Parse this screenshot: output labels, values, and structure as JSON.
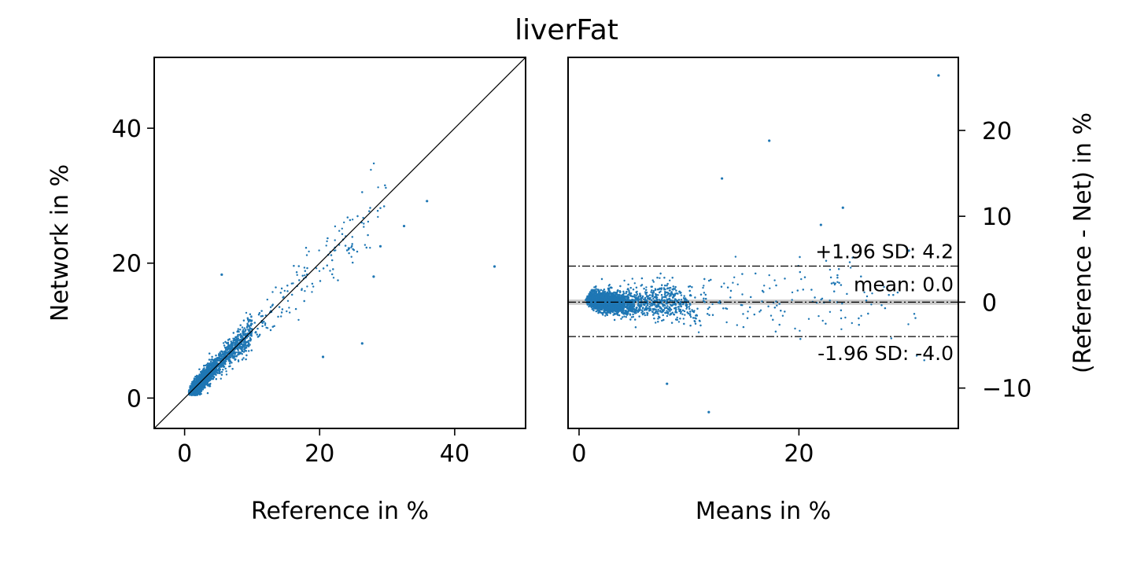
{
  "title": "liverFat",
  "colors": {
    "points": "#1f77b4",
    "frame": "#000000",
    "mean_band": "#bfbfbf"
  },
  "chart_data": [
    {
      "type": "scatter",
      "panel": "correlation",
      "xlabel": "Reference in %",
      "ylabel": "Network in %",
      "xlim": [
        -4.5,
        50.5
      ],
      "ylim": [
        -4.5,
        50.5
      ],
      "xticks": [
        0,
        20,
        40
      ],
      "yticks": [
        0,
        20,
        40
      ],
      "identity_line": true,
      "points_estimated_count": 5000,
      "notable_points": [
        {
          "x": 45.9,
          "y": 19.5
        },
        {
          "x": 35.9,
          "y": 29.2
        },
        {
          "x": 26.3,
          "y": 8.1
        },
        {
          "x": 20.5,
          "y": 6.1
        },
        {
          "x": 5.5,
          "y": 18.3
        },
        {
          "x": 29.0,
          "y": 22.5
        },
        {
          "x": 32.5,
          "y": 25.5
        },
        {
          "x": 28.0,
          "y": 18.0
        }
      ]
    },
    {
      "type": "scatter",
      "panel": "bland-altman",
      "xlabel": "Means in %",
      "ylabel": "(Reference - Net) in %",
      "xlim": [
        -1.0,
        34.5
      ],
      "ylim": [
        -14.7,
        28.5
      ],
      "xticks": [
        0,
        20
      ],
      "yticks": [
        -10,
        0,
        10,
        20
      ],
      "yaxis_position": "right",
      "mean": 0.0,
      "upper_loa": 4.2,
      "lower_loa": -4.0,
      "annotations": {
        "upper": "+1.96 SD: 4.2",
        "mean": "mean: 0.0",
        "lower": "-1.96 SD: -4.0"
      },
      "points_estimated_count": 5000,
      "notable_points": [
        {
          "x": 32.7,
          "y": 26.4
        },
        {
          "x": 17.3,
          "y": 18.8
        },
        {
          "x": 13.0,
          "y": 14.4
        },
        {
          "x": 11.8,
          "y": -12.8
        },
        {
          "x": 24.0,
          "y": 11.0
        },
        {
          "x": 22.0,
          "y": 9.0
        },
        {
          "x": 30.0,
          "y": 6.0
        },
        {
          "x": 8.0,
          "y": -9.5
        }
      ]
    }
  ]
}
